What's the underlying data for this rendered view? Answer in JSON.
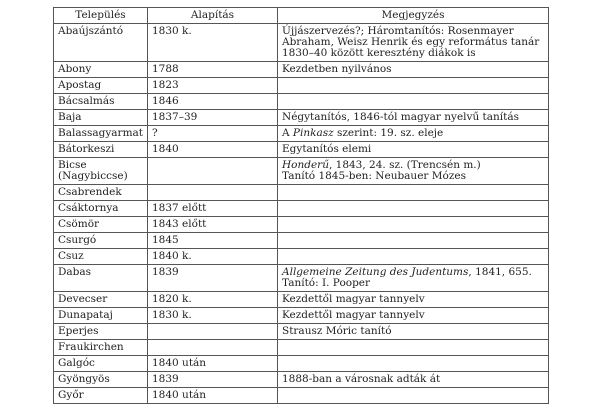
{
  "headers": [
    "Település",
    "Alapítás",
    "Megjegyzés"
  ],
  "rows": [
    {
      "place": "Abaújszántó",
      "founded": "1830 k.",
      "note": "Újjászervezés?; Háromtanítós: Rosenmayer Abraham, Weisz Henrik és egy református tanár 1830–40 között keresztény diákok is"
    },
    {
      "place": "Abony",
      "founded": "1788",
      "note": "Kezdetben nyilvános"
    },
    {
      "place": "Apostag",
      "founded": "1823",
      "note": ""
    },
    {
      "place": "Bácsalmás",
      "founded": "1846",
      "note": ""
    },
    {
      "place": "Baja",
      "founded": "1837–39",
      "note": "Négytanítós, 1846-tól magyar nyelvű tanítás"
    },
    {
      "place": "Balassagyarmat",
      "founded": "?",
      "note_pre": "A ",
      "note_italic": "Pinkasz",
      "note_post": " szerint: 19. sz. eleje"
    },
    {
      "place": "Bátorkeszi",
      "founded": "1840",
      "note": "Egytanítós elemi"
    },
    {
      "place": "Bicse (Nagybiccse)",
      "founded": "",
      "note_italic": "Honderű",
      "note_post": ", 1843, 24. sz. (Trencsén m.)",
      "note_line2": "Tanító 1845-ben: Neubauer Mózes"
    },
    {
      "place": "Csabrendek",
      "founded": "",
      "note": ""
    },
    {
      "place": "Csáktornya",
      "founded": "1837 előtt",
      "note": ""
    },
    {
      "place": "Csömör",
      "founded": "1843 előtt",
      "note": ""
    },
    {
      "place": "Csurgó",
      "founded": "1845",
      "note": ""
    },
    {
      "place": "Csuz",
      "founded": "1840 k.",
      "note": ""
    },
    {
      "place": "Dabas",
      "founded": "1839",
      "note_italic": "Allgemeine Zeitung des Judentums",
      "note_post": ", 1841, 655.",
      "note_line2": "Tanító: I. Pooper"
    },
    {
      "place": "Devecser",
      "founded": "1820 k.",
      "note": "Kezdettől magyar tannyelv"
    },
    {
      "place": "Dunapataj",
      "founded": "1830 k.",
      "note": "Kezdettől magyar tannyelv"
    },
    {
      "place": "Eperjes",
      "founded": "",
      "note": "Strausz Móric tanító"
    },
    {
      "place": "Fraukirchen",
      "founded": "",
      "note": ""
    },
    {
      "place": "Galgóc",
      "founded": "1840 után",
      "note": ""
    },
    {
      "place": "Gyöngyös",
      "founded": "1839",
      "note": "1888-ban a városnak adták át"
    },
    {
      "place": "Győr",
      "founded": "1840 után",
      "note": ""
    }
  ]
}
